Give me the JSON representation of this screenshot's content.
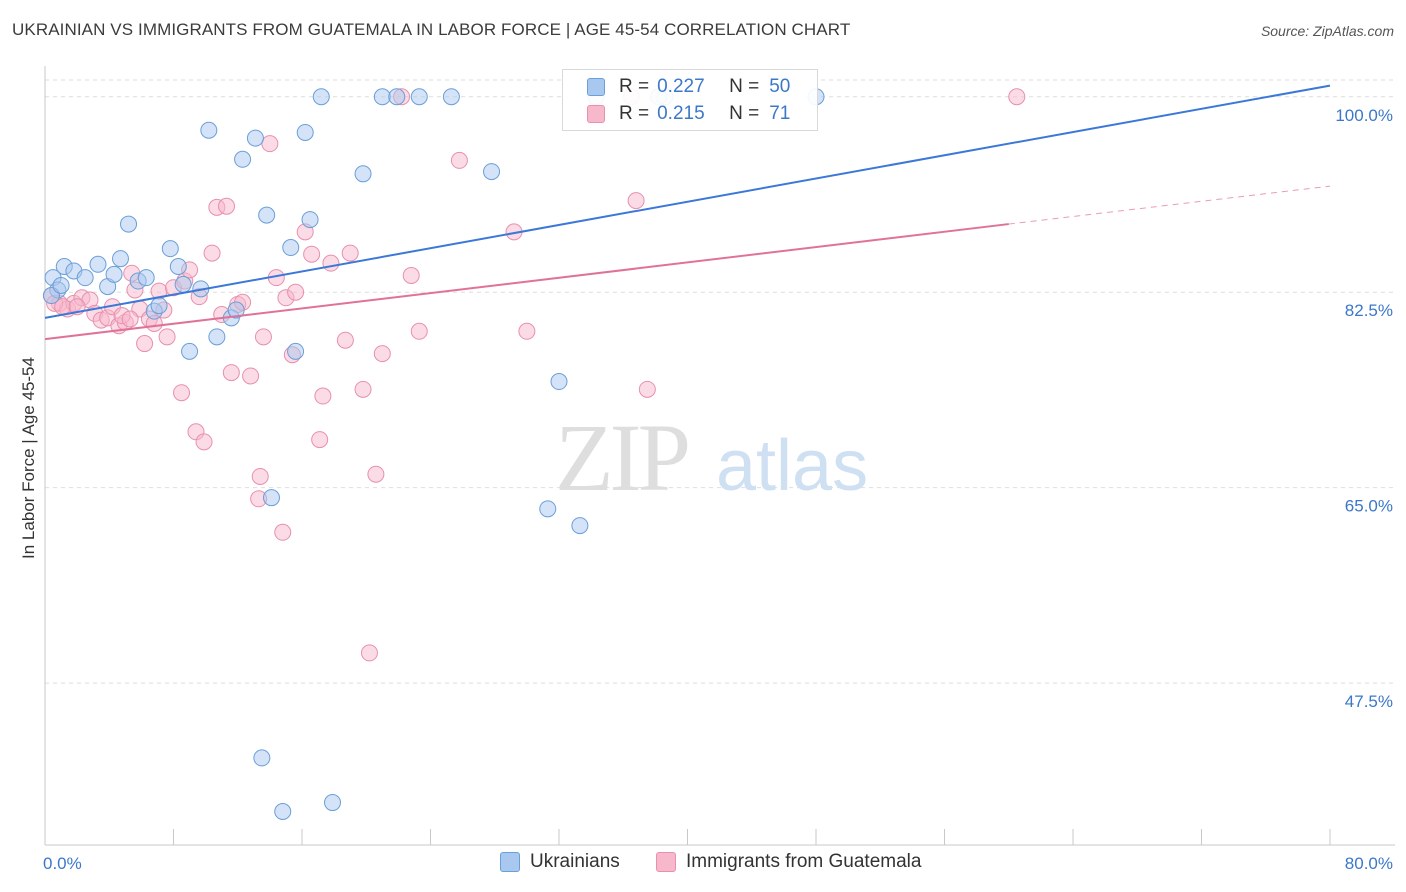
{
  "title": "UKRAINIAN VS IMMIGRANTS FROM GUATEMALA IN LABOR FORCE | AGE 45-54 CORRELATION CHART",
  "source": "Source: ZipAtlas.com",
  "watermark": {
    "zip": "ZIP",
    "atlas": "atlas"
  },
  "legend": {
    "r_label": "R =",
    "n_label": "N =",
    "rows": [
      {
        "r": "0.227",
        "n": "50",
        "color": "#a9c8f0"
      },
      {
        "r": "0.215",
        "n": "71",
        "color": "#f7b8cc"
      }
    ]
  },
  "colors": {
    "ukrainians_fill": "#a9c8f0",
    "ukrainians_stroke": "#6a9fd8",
    "ukrainians_line": "#3b78d8",
    "guatemala_fill": "#f7b8cc",
    "guatemala_stroke": "#e890ad",
    "guatemala_line": "#e0729a",
    "tick_label": "#3b78c8"
  },
  "chart_data": {
    "type": "scatter",
    "title": "UKRAINIAN VS IMMIGRANTS FROM GUATEMALA IN LABOR FORCE | AGE 45-54 CORRELATION CHART",
    "xlabel": "",
    "ylabel": "In Labor Force | Age 45-54",
    "xlim": [
      0,
      80
    ],
    "ylim": [
      33,
      101.5
    ],
    "x_tick_labels": [
      "0.0%",
      "80.0%"
    ],
    "y_ticks": [
      47.5,
      65.0,
      82.5,
      100.0
    ],
    "y_tick_labels": [
      "47.5%",
      "65.0%",
      "82.5%",
      "100.0%"
    ],
    "grid": "horizontal dashed",
    "legend_position": "top-center",
    "series": [
      {
        "name": "Ukrainians",
        "r": 0.227,
        "n": 50,
        "trend": {
          "x": [
            0,
            80
          ],
          "y": [
            80.2,
            101.0
          ]
        },
        "points": [
          [
            0.5,
            83.8
          ],
          [
            0.8,
            82.7
          ],
          [
            1.2,
            84.8
          ],
          [
            1.8,
            84.4
          ],
          [
            2.5,
            83.8
          ],
          [
            3.3,
            85.0
          ],
          [
            3.9,
            83.0
          ],
          [
            4.3,
            84.1
          ],
          [
            4.7,
            85.5
          ],
          [
            5.2,
            88.6
          ],
          [
            5.8,
            83.5
          ],
          [
            6.3,
            83.8
          ],
          [
            6.8,
            80.8
          ],
          [
            7.1,
            81.3
          ],
          [
            7.8,
            86.4
          ],
          [
            8.3,
            84.8
          ],
          [
            8.6,
            83.2
          ],
          [
            9.0,
            77.2
          ],
          [
            9.7,
            82.8
          ],
          [
            10.2,
            97.0
          ],
          [
            10.7,
            78.5
          ],
          [
            11.6,
            80.2
          ],
          [
            11.9,
            80.9
          ],
          [
            12.3,
            94.4
          ],
          [
            13.1,
            96.3
          ],
          [
            13.8,
            89.4
          ],
          [
            14.1,
            64.1
          ],
          [
            15.3,
            86.5
          ],
          [
            16.2,
            96.8
          ],
          [
            16.5,
            89.0
          ],
          [
            15.6,
            77.2
          ],
          [
            17.2,
            100.0
          ],
          [
            19.8,
            93.1
          ],
          [
            21.0,
            100.0
          ],
          [
            21.9,
            100.0
          ],
          [
            23.3,
            100.0
          ],
          [
            25.3,
            100.0
          ],
          [
            27.8,
            93.3
          ],
          [
            32.0,
            74.5
          ],
          [
            31.3,
            63.1
          ],
          [
            33.3,
            61.6
          ],
          [
            34.3,
            100.0
          ],
          [
            38.6,
            100.0
          ],
          [
            38.2,
            100.0
          ],
          [
            48.0,
            100.0
          ],
          [
            13.5,
            40.8
          ],
          [
            14.8,
            36.0
          ],
          [
            17.9,
            36.8
          ],
          [
            0.4,
            82.2
          ],
          [
            1.0,
            83.1
          ]
        ]
      },
      {
        "name": "Immigrants from Guatemala",
        "r": 0.215,
        "n": 71,
        "trend": {
          "x": [
            0,
            60
          ],
          "y": [
            78.3,
            88.6
          ]
        },
        "trend_extension": {
          "x": [
            60,
            80
          ],
          "y": [
            88.6,
            92.0
          ]
        },
        "points": [
          [
            0.4,
            82.2
          ],
          [
            0.9,
            81.5
          ],
          [
            1.4,
            81.0
          ],
          [
            1.8,
            81.5
          ],
          [
            2.3,
            82.0
          ],
          [
            2.8,
            81.8
          ],
          [
            3.1,
            80.6
          ],
          [
            3.5,
            80.0
          ],
          [
            3.9,
            80.2
          ],
          [
            4.2,
            81.2
          ],
          [
            4.6,
            79.5
          ],
          [
            5.0,
            79.8
          ],
          [
            5.4,
            84.2
          ],
          [
            5.6,
            82.7
          ],
          [
            5.9,
            81.0
          ],
          [
            6.2,
            77.9
          ],
          [
            6.5,
            80.1
          ],
          [
            6.8,
            79.7
          ],
          [
            7.1,
            82.6
          ],
          [
            7.4,
            80.9
          ],
          [
            7.6,
            78.5
          ],
          [
            8.0,
            82.9
          ],
          [
            8.5,
            73.5
          ],
          [
            8.7,
            83.5
          ],
          [
            9.0,
            84.5
          ],
          [
            9.4,
            70.0
          ],
          [
            9.6,
            82.1
          ],
          [
            9.9,
            69.1
          ],
          [
            10.4,
            86.0
          ],
          [
            10.7,
            90.1
          ],
          [
            11.0,
            80.5
          ],
          [
            11.3,
            90.2
          ],
          [
            11.6,
            75.3
          ],
          [
            12.0,
            81.4
          ],
          [
            12.3,
            81.6
          ],
          [
            12.8,
            75.0
          ],
          [
            13.3,
            64.0
          ],
          [
            13.4,
            66.0
          ],
          [
            13.6,
            78.5
          ],
          [
            14.0,
            95.8
          ],
          [
            14.4,
            83.8
          ],
          [
            14.8,
            61.0
          ],
          [
            15.0,
            82.0
          ],
          [
            15.4,
            76.9
          ],
          [
            15.6,
            82.5
          ],
          [
            16.2,
            87.9
          ],
          [
            16.6,
            85.9
          ],
          [
            17.1,
            69.3
          ],
          [
            17.3,
            73.2
          ],
          [
            17.8,
            85.1
          ],
          [
            18.7,
            78.2
          ],
          [
            19.0,
            86.0
          ],
          [
            19.8,
            73.8
          ],
          [
            20.2,
            50.2
          ],
          [
            20.6,
            66.2
          ],
          [
            21.0,
            77.0
          ],
          [
            22.2,
            100.0
          ],
          [
            22.8,
            84.0
          ],
          [
            23.3,
            79.0
          ],
          [
            25.8,
            94.3
          ],
          [
            29.2,
            87.9
          ],
          [
            30.0,
            79.0
          ],
          [
            36.5,
            100.0
          ],
          [
            36.8,
            90.7
          ],
          [
            37.5,
            73.8
          ],
          [
            60.5,
            100.0
          ],
          [
            0.6,
            81.5
          ],
          [
            1.1,
            81.2
          ],
          [
            2.0,
            81.2
          ],
          [
            4.8,
            80.4
          ],
          [
            5.3,
            80.1
          ]
        ]
      }
    ]
  }
}
